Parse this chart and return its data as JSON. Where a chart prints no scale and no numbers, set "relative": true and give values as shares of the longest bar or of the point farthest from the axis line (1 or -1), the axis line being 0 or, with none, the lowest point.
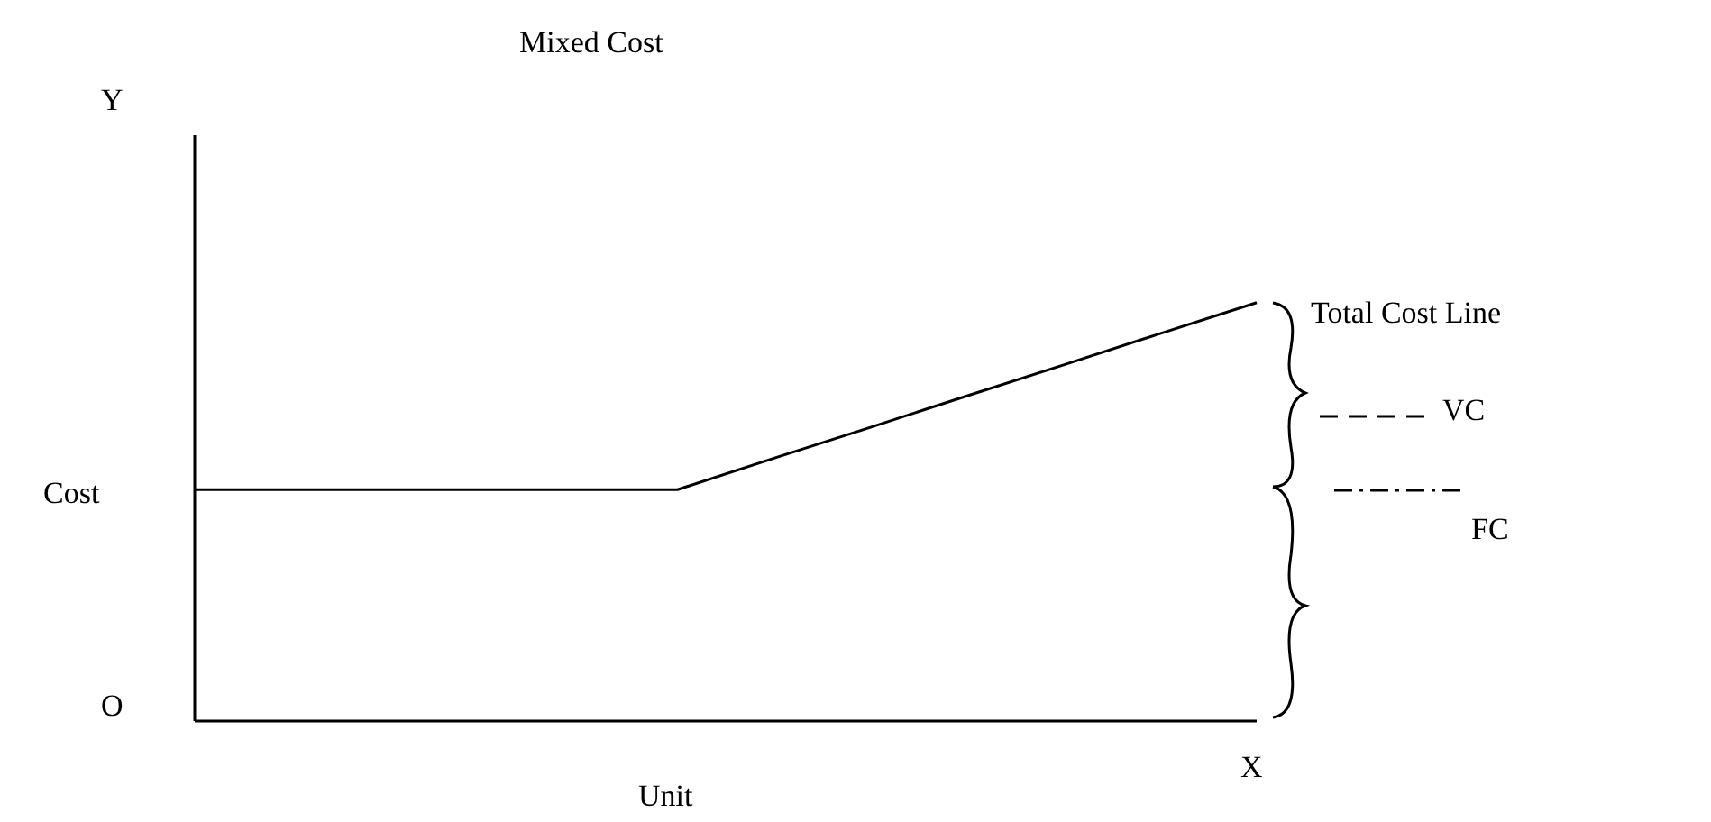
{
  "chart_data": {
    "type": "line",
    "title": "Mixed Cost",
    "xlabel": "Unit",
    "ylabel": "Cost",
    "relative": true,
    "categories": [
      null,
      null,
      null,
      null,
      null,
      null,
      null,
      null,
      null,
      null,
      null,
      null
    ],
    "series": [
      {
        "color": "#000000",
        "values": [
          0.553,
          0.553,
          0.553,
          0.553,
          0.553,
          0.553,
          0.628,
          0.702,
          0.777,
          0.851,
          0.926,
          1
        ]
      }
    ],
    "annotations": [
      "Y",
      "O",
      "X",
      "Total Cost Line",
      "VC",
      "FC"
    ],
    "marker": "none",
    "line_style": "solid"
  }
}
